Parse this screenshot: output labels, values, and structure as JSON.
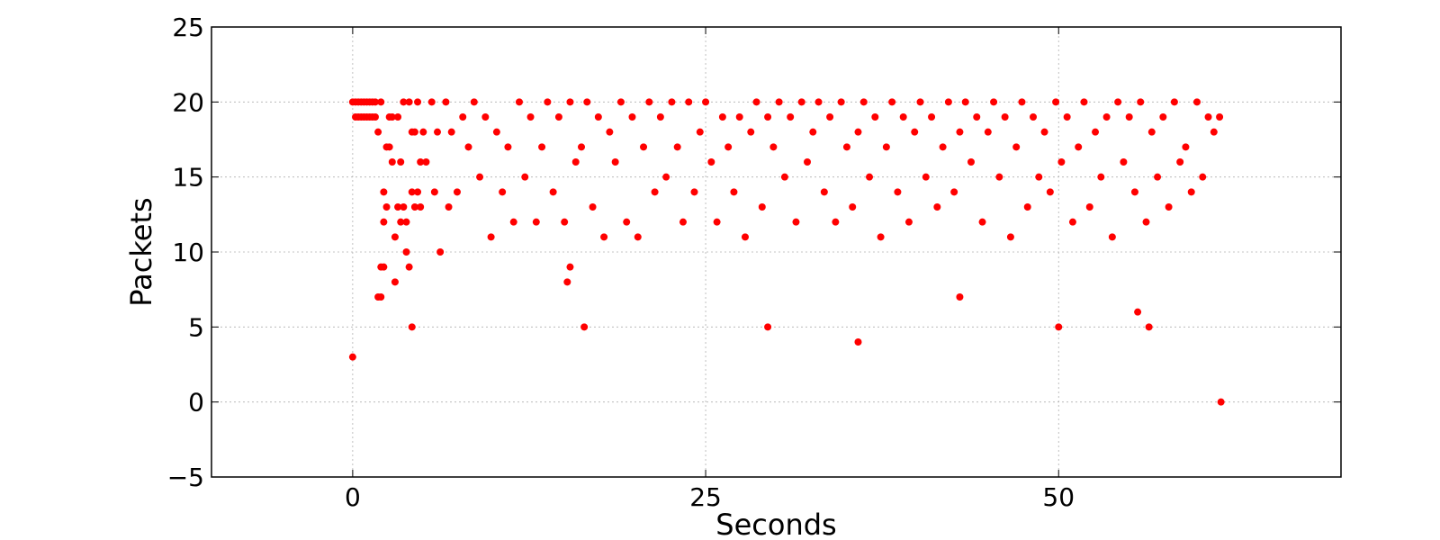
{
  "chart_data": {
    "type": "scatter",
    "title": "",
    "xlabel": "Seconds",
    "ylabel": "Packets",
    "xlim": [
      -10,
      70
    ],
    "ylim": [
      -5,
      25
    ],
    "xticks": [
      0,
      25,
      50
    ],
    "yticks": [
      -5,
      0,
      5,
      10,
      15,
      20,
      25
    ],
    "ytick_labels": [
      "−5",
      "0",
      "5",
      "10",
      "15",
      "20",
      "25"
    ],
    "grid": true,
    "legend": "none",
    "marker_color": "#ff0000",
    "series": [
      {
        "x": [
          0.0,
          0.0,
          0.2,
          0.2,
          0.4,
          0.4,
          0.6,
          0.6,
          0.8,
          0.8,
          1.0,
          1.0,
          1.2,
          1.2,
          1.4,
          1.4,
          1.6,
          1.6,
          1.8,
          1.8,
          2.0,
          2.0,
          2.2,
          2.2,
          2.4,
          2.4,
          2.6,
          2.6,
          2.8,
          2.8,
          3.0,
          3.0,
          3.2,
          3.2,
          3.4,
          3.4,
          3.6,
          3.6,
          3.8,
          3.8,
          4.0,
          4.0,
          4.2,
          4.2,
          4.4,
          4.4,
          4.6,
          4.6,
          4.8,
          4.8,
          5.0,
          5.2,
          5.6,
          5.8,
          6.0,
          6.2,
          6.6,
          6.8,
          7.0,
          7.4,
          7.8,
          8.2,
          8.6,
          9.0,
          9.4,
          9.8,
          10.2,
          10.6,
          11.0,
          11.4,
          11.8,
          12.2,
          12.6,
          13.0,
          13.4,
          13.8,
          14.2,
          14.6,
          15.0,
          15.4,
          15.8,
          16.2,
          16.6,
          17.0,
          17.4,
          17.8,
          18.2,
          18.6,
          19.0,
          19.4,
          19.8,
          20.2,
          20.6,
          21.0,
          21.4,
          21.8,
          22.2,
          22.6,
          23.0,
          23.4,
          23.8,
          24.2,
          24.6,
          25.0,
          25.4,
          25.8,
          26.2,
          26.6,
          27.0,
          27.4,
          27.8,
          28.2,
          28.6,
          29.0,
          29.4,
          29.8,
          30.2,
          30.6,
          31.0,
          31.4,
          31.8,
          32.2,
          32.6,
          33.0,
          33.4,
          33.8,
          34.2,
          34.6,
          35.0,
          35.4,
          35.8,
          36.2,
          36.6,
          37.0,
          37.4,
          37.8,
          38.2,
          38.6,
          39.0,
          39.4,
          39.8,
          40.2,
          40.6,
          41.0,
          41.4,
          41.8,
          42.2,
          42.6,
          43.0,
          43.4,
          43.8,
          44.2,
          44.6,
          45.0,
          45.4,
          45.8,
          46.2,
          46.6,
          47.0,
          47.4,
          47.8,
          48.2,
          48.6,
          49.0,
          49.4,
          49.8,
          50.2,
          50.6,
          51.0,
          51.4,
          51.8,
          52.2,
          52.6,
          53.0,
          53.4,
          53.8,
          54.2,
          54.6,
          55.0,
          55.4,
          55.8,
          56.2,
          56.6,
          57.0,
          57.4,
          57.8,
          58.2,
          58.6,
          59.0,
          59.4,
          59.8,
          60.2,
          60.6,
          61.0,
          61.4,
          15.2,
          15.4,
          16.4,
          29.4,
          35.8,
          4.2,
          2.0,
          2.2,
          43.0,
          50.0,
          55.6,
          56.4,
          61.5
        ],
        "y": [
          3,
          20,
          19,
          20,
          19,
          20,
          19,
          20,
          19,
          20,
          19,
          20,
          19,
          20,
          19,
          20,
          19,
          20,
          18,
          7,
          20,
          9,
          12,
          14,
          17,
          13,
          19,
          17,
          19,
          16,
          11,
          8,
          19,
          13,
          16,
          12,
          13,
          20,
          10,
          12,
          20,
          9,
          18,
          14,
          18,
          13,
          20,
          14,
          16,
          13,
          18,
          16,
          20,
          14,
          18,
          10,
          20,
          13,
          18,
          14,
          19,
          17,
          20,
          15,
          19,
          11,
          18,
          14,
          17,
          12,
          20,
          15,
          19,
          12,
          17,
          20,
          14,
          19,
          12,
          20,
          16,
          17,
          20,
          13,
          19,
          11,
          18,
          16,
          20,
          12,
          19,
          11,
          17,
          20,
          14,
          19,
          15,
          20,
          17,
          12,
          20,
          14,
          18,
          20,
          16,
          12,
          19,
          17,
          14,
          19,
          11,
          18,
          20,
          13,
          19,
          17,
          20,
          15,
          19,
          12,
          20,
          16,
          18,
          20,
          14,
          19,
          12,
          20,
          17,
          13,
          18,
          20,
          15,
          19,
          11,
          17,
          20,
          14,
          19,
          12,
          18,
          20,
          15,
          19,
          13,
          17,
          20,
          14,
          18,
          20,
          16,
          19,
          12,
          18,
          20,
          15,
          19,
          11,
          17,
          20,
          13,
          19,
          15,
          18,
          14,
          20,
          16,
          19,
          12,
          17,
          20,
          13,
          18,
          15,
          19,
          11,
          20,
          16,
          19,
          14,
          20,
          12,
          18,
          15,
          19,
          13,
          20,
          16,
          17,
          14,
          20,
          15,
          19,
          18,
          19,
          8,
          9,
          5,
          5,
          4,
          5,
          7,
          9,
          7,
          5,
          6,
          5,
          0
        ]
      }
    ]
  }
}
